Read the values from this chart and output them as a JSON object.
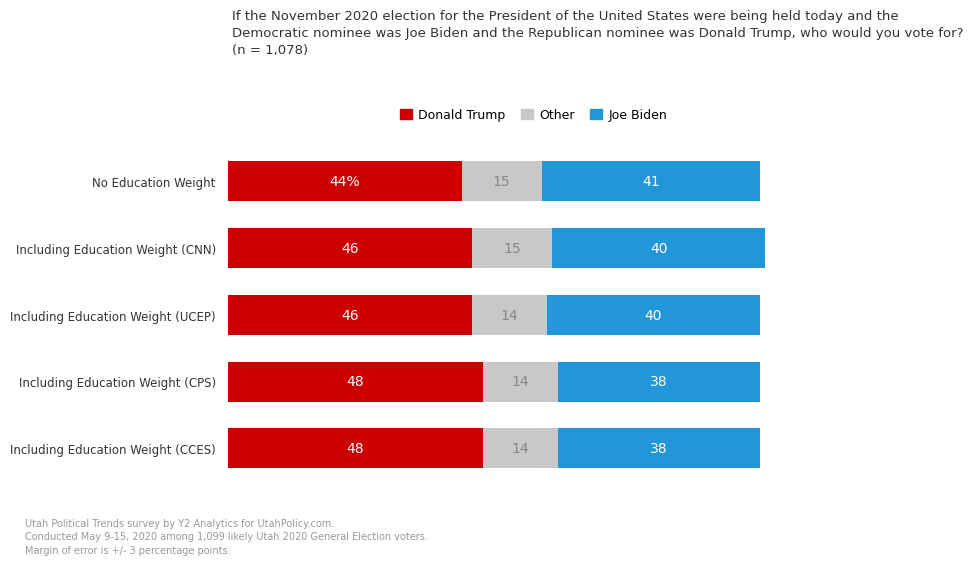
{
  "title_line1": "If the November 2020 election for the President of the United States were being held today and the",
  "title_line2": "Democratic nominee was Joe Biden and the Republican nominee was Donald Trump, who would you vote for?",
  "title_line3": "(n = 1,078)",
  "categories": [
    "No Education Weight",
    "Including Education Weight (CNN)",
    "Including Education Weight (UCEP)",
    "Including Education Weight (CPS)",
    "Including Education Weight (CCES)"
  ],
  "trump_values": [
    44,
    46,
    46,
    48,
    48
  ],
  "other_values": [
    15,
    15,
    14,
    14,
    14
  ],
  "biden_values": [
    41,
    40,
    40,
    38,
    38
  ],
  "trump_labels": [
    "44%",
    "46",
    "46",
    "48",
    "48"
  ],
  "other_labels": [
    "15",
    "15",
    "14",
    "14",
    "14"
  ],
  "biden_labels": [
    "41",
    "40",
    "40",
    "38",
    "38"
  ],
  "trump_color": "#cc0000",
  "other_color": "#c8c8c8",
  "biden_color": "#2196d8",
  "legend_labels": [
    "Donald Trump",
    "Other",
    "Joe Biden"
  ],
  "footnote_line1": "Utah Political Trends survey by Y2 Analytics for UtahPolicy.com.",
  "footnote_line2": "Conducted May 9-15, 2020 among 1,099 likely Utah 2020 General Election voters.",
  "footnote_line3": "Margin of error is +/- 3 percentage points.",
  "bar_height": 0.6,
  "bg_color": "#ffffff",
  "text_color_bar": "#ffffff",
  "text_color_other": "#888888",
  "label_fontsize": 10,
  "title_fontsize": 9.5,
  "category_fontsize": 8.5,
  "footnote_fontsize": 7.0,
  "xlim_max": 115
}
